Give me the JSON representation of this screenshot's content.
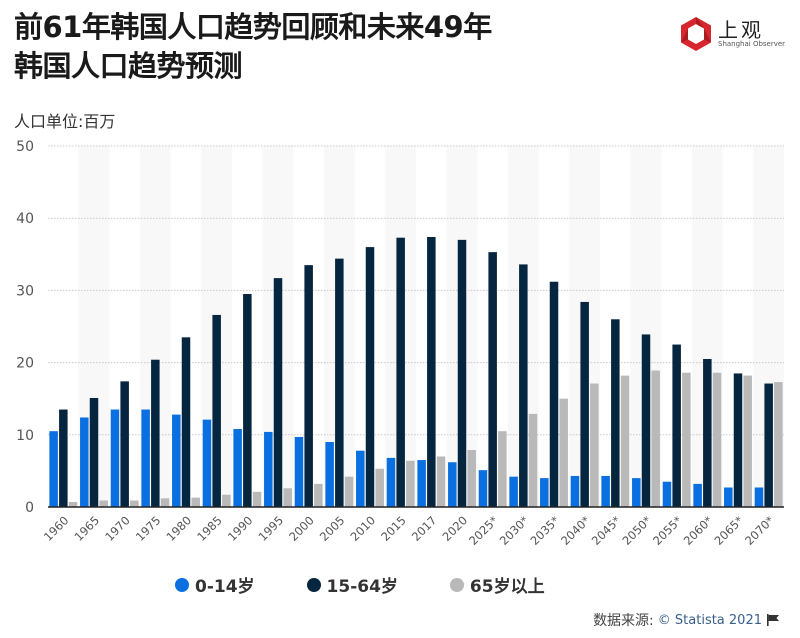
{
  "header": {
    "title_line1": "前61年韩国人口趋势回顾和未来49年",
    "title_line2": "韩国人口趋势预测",
    "subtitle": "人口单位:百万",
    "logo_text": "上观",
    "logo_sub": "Shanghai Observer"
  },
  "legend": [
    {
      "label": "0-14岁",
      "color": "#0a6fe0"
    },
    {
      "label": "15-64岁",
      "color": "#062640"
    },
    {
      "label": "65岁以上",
      "color": "#b9b9b9"
    }
  ],
  "source": {
    "label": "数据来源:",
    "brand": "© Statista 2021",
    "icon": "flag-icon"
  },
  "chart_data": {
    "type": "bar",
    "title": "前61年韩国人口趋势回顾和未来49年韩国人口趋势预测",
    "ylabel": "人口单位:百万",
    "xlabel": "",
    "ylim": [
      0,
      50
    ],
    "yticks": [
      0,
      10,
      20,
      30,
      40,
      50
    ],
    "grid": true,
    "legend_position": "bottom",
    "categories": [
      "1960",
      "1965",
      "1970",
      "1975",
      "1980",
      "1985",
      "1990",
      "1995",
      "2000",
      "2005",
      "2010",
      "2015",
      "2017",
      "2020",
      "2025*",
      "2030*",
      "2035*",
      "2040*",
      "2045*",
      "2050*",
      "2055*",
      "2060*",
      "2065*",
      "2070*"
    ],
    "series": [
      {
        "name": "0-14岁",
        "color": "#0a6fe0",
        "values": [
          10.5,
          12.4,
          13.5,
          13.5,
          12.8,
          12.1,
          10.8,
          10.4,
          9.7,
          9.0,
          7.8,
          6.8,
          6.5,
          6.2,
          5.1,
          4.2,
          4.0,
          4.3,
          4.3,
          4.0,
          3.5,
          3.2,
          2.7,
          2.7
        ]
      },
      {
        "name": "15-64岁",
        "color": "#062640",
        "values": [
          13.5,
          15.1,
          17.4,
          20.4,
          23.5,
          26.6,
          29.5,
          31.7,
          33.5,
          34.4,
          36.0,
          37.3,
          37.4,
          37.0,
          35.3,
          33.6,
          31.2,
          28.4,
          26.0,
          23.9,
          22.5,
          20.5,
          18.5,
          17.1
        ]
      },
      {
        "name": "65岁以上",
        "color": "#b9b9b9",
        "values": [
          0.7,
          0.9,
          0.9,
          1.2,
          1.3,
          1.7,
          2.1,
          2.6,
          3.2,
          4.2,
          5.3,
          6.4,
          7.0,
          7.9,
          10.5,
          12.9,
          15.0,
          17.1,
          18.2,
          18.9,
          18.6,
          18.6,
          18.2,
          17.3
        ]
      }
    ]
  }
}
